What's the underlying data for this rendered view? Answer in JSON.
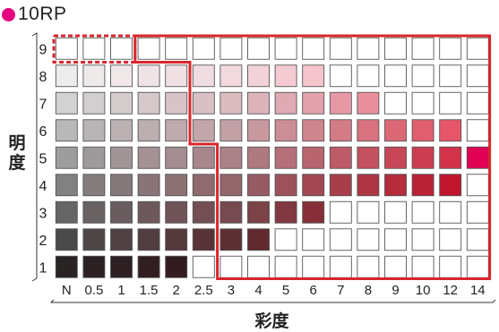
{
  "hue_label": "10RP",
  "hue_dot_color": "#e4007f",
  "y_axis_label": "明度",
  "x_axis_label": "彩度",
  "chart_data": {
    "type": "heatmap",
    "title": "10RP",
    "xlabel": "彩度",
    "ylabel": "明度",
    "x_ticks": [
      "N",
      "0.5",
      "1",
      "1.5",
      "2",
      "2.5",
      "3",
      "4",
      "5",
      "6",
      "7",
      "8",
      "9",
      "10",
      "12",
      "14"
    ],
    "y_ticks": [
      "9",
      "8",
      "7",
      "6",
      "5",
      "4",
      "3",
      "2",
      "1"
    ],
    "empty_color": "#ffffff",
    "rows": [
      {
        "value": "9",
        "colors": [
          "#ffffff",
          "#ffffff",
          "#ffffff",
          "",
          "",
          "",
          "",
          "",
          "",
          "",
          "",
          "",
          "",
          "",
          "",
          ""
        ]
      },
      {
        "value": "8",
        "colors": [
          "#ececec",
          "#eeeaea",
          "#efe7e8",
          "#efe3e5",
          "#f0e0e3",
          "#f0dde1",
          "#f1d9dd",
          "#f2d2d8",
          "#f4cbd2",
          "#f5c4cc",
          "",
          "",
          "",
          "",
          "",
          ""
        ]
      },
      {
        "value": "7",
        "colors": [
          "#d2d2d2",
          "#d3cfd0",
          "#d4cbcd",
          "#d6c8ca",
          "#d7c4c8",
          "#d8c0c5",
          "#dabcc1",
          "#ddb3ba",
          "#e0aab3",
          "#e3a2ac",
          "#e699a5",
          "#ea8f9d",
          "",
          "",
          "",
          ""
        ]
      },
      {
        "value": "6",
        "colors": [
          "#b8b8b8",
          "#b9b5b6",
          "#bbb1b3",
          "#bdaeb0",
          "#bfaaad",
          "#c1a5aa",
          "#c3a0a6",
          "#c7989e",
          "#cb8e96",
          "#cf858e",
          "#d37b86",
          "#d7727e",
          "#dc6876",
          "#e05f6f",
          "#e65568",
          ""
        ]
      },
      {
        "value": "5",
        "colors": [
          "#9d9d9d",
          "#9e999a",
          "#a19597",
          "#a39194",
          "#a58c90",
          "#a8878c",
          "#aa8288",
          "#af7980",
          "#b46f78",
          "#b96570",
          "#be5b68",
          "#c35160",
          "#c74758",
          "#cc3d51",
          "#d3334a",
          "#e20052"
        ]
      },
      {
        "value": "4",
        "colors": [
          "#818181",
          "#837d7e",
          "#86797b",
          "#897477",
          "#8c7073",
          "#8f6b6f",
          "#92666b",
          "#975c63",
          "#9d525b",
          "#a34853",
          "#a83e4b",
          "#ae3543",
          "#b42b3c",
          "#b92235",
          "#c0162e",
          ""
        ]
      },
      {
        "value": "3",
        "colors": [
          "#666666",
          "#686263",
          "#6a5d5f",
          "#6d595c",
          "#705458",
          "#734f54",
          "#764a50",
          "#7b4248",
          "#823840",
          "#872f38",
          "",
          "",
          "",
          "",
          "",
          ""
        ]
      },
      {
        "value": "2",
        "colors": [
          "#4a4a4a",
          "#4c4647",
          "#4f4143",
          "#523d40",
          "#55393c",
          "#583438",
          "#5b2f34",
          "#60292e",
          "",
          "",
          "",
          "",
          "",
          "",
          "",
          ""
        ]
      },
      {
        "value": "1",
        "colors": [
          "#292323",
          "#2b2123",
          "#2d1f22",
          "#301e21",
          "#331c20",
          "",
          "",
          "",
          "",
          "",
          "",
          "",
          "",
          "",
          "",
          ""
        ]
      }
    ]
  }
}
